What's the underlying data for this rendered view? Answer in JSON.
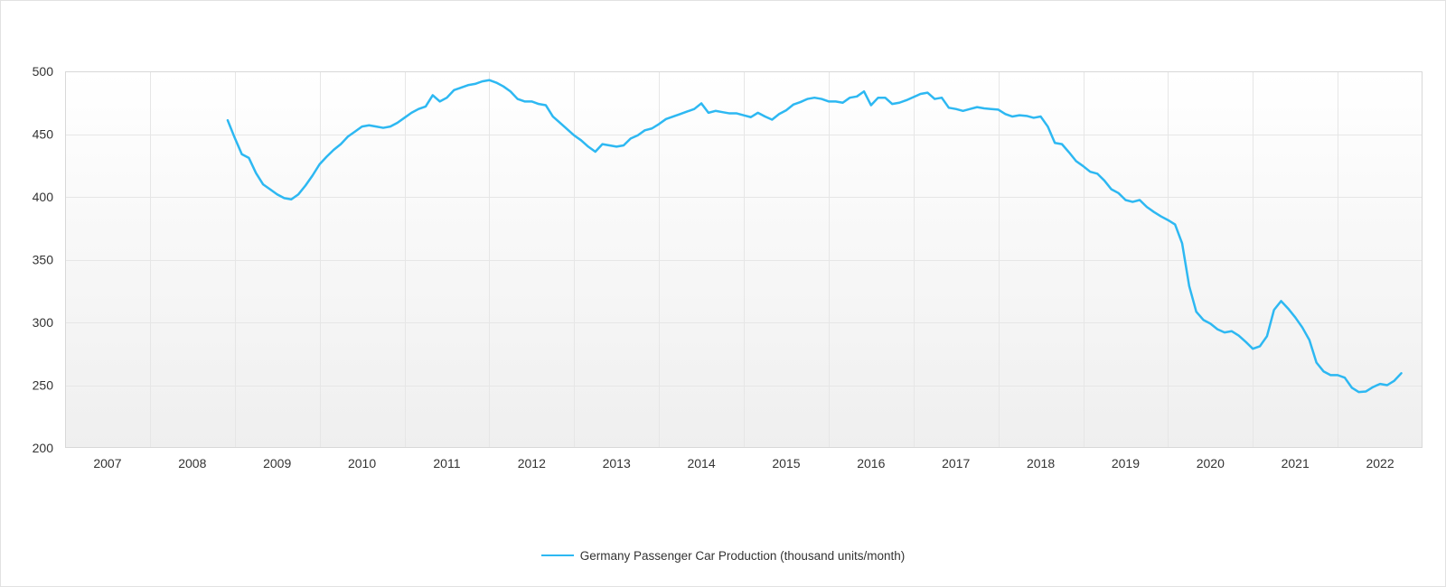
{
  "chart_data": {
    "type": "line",
    "title": "",
    "xlabel": "",
    "ylabel": "",
    "x_axis": {
      "unit": "year",
      "start_year": 2007,
      "end_year_exclusive": 2023,
      "tick_labels": [
        "2007",
        "2008",
        "2009",
        "2010",
        "2011",
        "2012",
        "2013",
        "2014",
        "2015",
        "2016",
        "2017",
        "2018",
        "2019",
        "2020",
        "2021",
        "2022"
      ]
    },
    "y_axis": {
      "min": 200,
      "max": 500,
      "ticks": [
        200,
        250,
        300,
        350,
        400,
        450,
        500
      ],
      "tick_labels": [
        "200",
        "250",
        "300",
        "350",
        "400",
        "450",
        "500"
      ]
    },
    "grid": true,
    "legend_position": "bottom",
    "series": [
      {
        "name": "Germany Passenger Car Production (thousand units/month)",
        "color": "#2db8f2",
        "frequency": "monthly",
        "start": "2008-12",
        "end": "2022-10",
        "values": [
          461,
          447,
          434,
          431,
          419,
          410,
          406,
          402,
          399,
          398,
          402,
          409,
          417,
          426,
          432,
          437.5,
          442,
          448,
          452,
          456,
          457,
          456,
          455,
          456,
          459,
          463,
          467,
          470,
          472,
          481,
          476,
          479,
          485,
          487,
          489,
          490,
          492,
          493,
          491,
          488,
          484,
          478,
          476,
          476,
          474,
          473,
          464,
          459,
          454,
          449,
          445,
          440,
          436,
          442,
          441,
          440,
          441,
          446.5,
          449,
          453,
          454.5,
          458,
          462,
          464,
          466,
          468,
          470,
          474.5,
          467,
          468.5,
          467.5,
          466.5,
          466.5,
          465,
          463.5,
          467,
          464,
          461.5,
          466,
          469,
          473.5,
          475.5,
          478,
          479,
          478,
          476,
          476,
          475,
          479,
          480,
          484,
          473,
          479,
          479,
          474,
          475,
          477,
          479.5,
          482,
          483,
          478,
          479,
          471,
          470,
          468.5,
          470,
          471.5,
          470.5,
          470,
          469.5,
          466,
          464,
          465,
          464.5,
          463,
          464,
          456,
          443,
          442,
          435.5,
          428.5,
          424.5,
          420,
          418.5,
          413,
          406,
          403,
          397.5,
          396,
          397.5,
          392,
          388,
          384.5,
          381.5,
          378,
          363,
          329,
          308.5,
          302,
          299,
          294.5,
          292,
          293,
          289.5,
          284.5,
          279,
          281,
          289,
          310,
          317,
          311,
          304,
          296,
          286,
          268,
          261,
          258,
          258,
          256,
          248,
          244.5,
          245,
          248.5,
          251,
          250,
          253.5,
          259.5
        ]
      }
    ]
  },
  "legend": {
    "label": "Germany Passenger Car Production (thousand units/month)"
  },
  "colors": {
    "line": "#2db8f2",
    "grid_line": "#e6e6e6",
    "plot_border": "#d8d8d8",
    "plot_bg_top": "#ffffff",
    "plot_bg_bottom": "#efefef",
    "axis_text": "#333333",
    "page_border": "#e2e2e2"
  }
}
